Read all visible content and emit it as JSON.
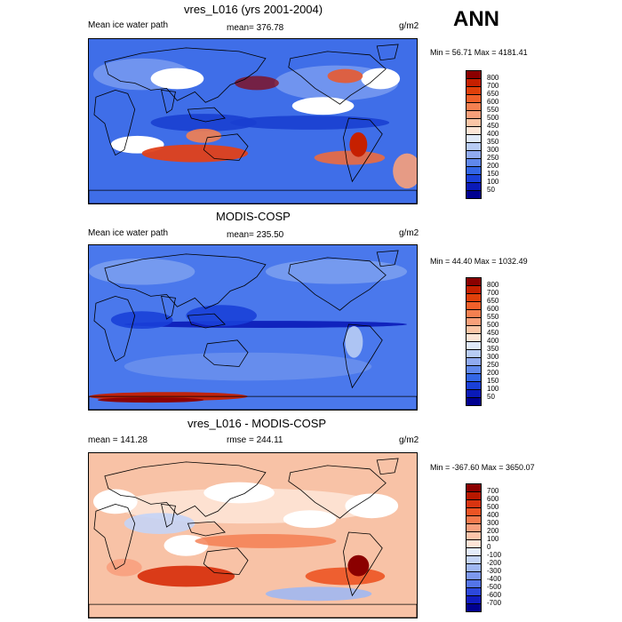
{
  "season_label": "ANN",
  "panels": [
    {
      "title": "vres_L016 (yrs 2001-2004)",
      "left_label": "Mean ice water path",
      "center_label": "mean= 376.78",
      "units": "g/m2",
      "minmax": "Min =  56.71 Max = 4181.41",
      "colorbar": {
        "labels": [
          "800",
          "700",
          "650",
          "600",
          "550",
          "500",
          "450",
          "400",
          "350",
          "300",
          "250",
          "200",
          "150",
          "100",
          "50"
        ],
        "colors": [
          "#8b0000",
          "#c62000",
          "#e0400a",
          "#f0602a",
          "#f48050",
          "#f8a07a",
          "#fbc6a6",
          "#fde6d6",
          "#e0eaf8",
          "#b8ccf4",
          "#90aaf0",
          "#6088ec",
          "#3366e6",
          "#1a40d8",
          "#0a1ab8",
          "#000090"
        ]
      },
      "map_style": "model"
    },
    {
      "title": "MODIS-COSP",
      "left_label": "Mean ice water path",
      "center_label": "mean= 235.50",
      "units": "g/m2",
      "minmax": "Min =  44.40 Max = 1032.49",
      "colorbar": {
        "labels": [
          "800",
          "700",
          "650",
          "600",
          "550",
          "500",
          "450",
          "400",
          "350",
          "300",
          "250",
          "200",
          "150",
          "100",
          "50"
        ],
        "colors": [
          "#8b0000",
          "#c62000",
          "#e0400a",
          "#f0602a",
          "#f48050",
          "#f8a07a",
          "#fbc6a6",
          "#fde6d6",
          "#e0eaf8",
          "#b8ccf4",
          "#90aaf0",
          "#6088ec",
          "#3366e6",
          "#1a40d8",
          "#0a1ab8",
          "#000090"
        ]
      },
      "map_style": "obs"
    },
    {
      "title": "vres_L016 - MODIS-COSP",
      "left_label": "mean = 141.28",
      "center_label": "rmse = 244.11",
      "units": "g/m2",
      "minmax": "Min = -367.60 Max = 3650.07",
      "colorbar": {
        "labels": [
          "700",
          "600",
          "500",
          "400",
          "300",
          "200",
          "100",
          "0",
          "-100",
          "-200",
          "-300",
          "-400",
          "-500",
          "-600",
          "-700"
        ],
        "colors": [
          "#8b0000",
          "#b81800",
          "#d83410",
          "#ec5424",
          "#f47a4e",
          "#f8a07e",
          "#fbc4aa",
          "#fde4d6",
          "#e4ecfa",
          "#c4d4f6",
          "#a0b8f2",
          "#7c98ee",
          "#5474e8",
          "#2c48dc",
          "#101cc0",
          "#000090"
        ]
      },
      "map_style": "diff"
    }
  ]
}
